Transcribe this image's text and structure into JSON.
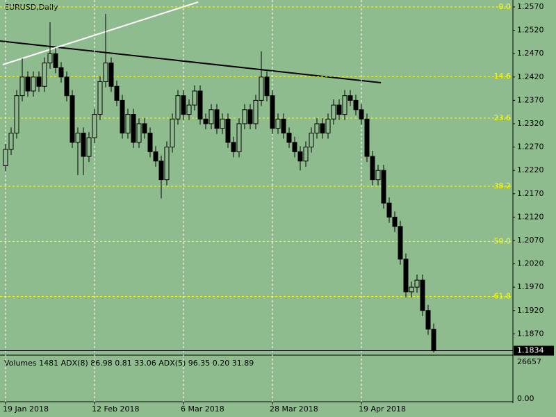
{
  "chart_data": {
    "type": "candlestick",
    "title": "EURUSD,Daily",
    "categories": [
      "19 Jan 2018",
      null,
      null,
      null,
      null,
      null,
      null,
      null,
      null,
      null,
      null,
      null,
      null,
      null,
      null,
      null,
      "12 Feb 2018",
      null,
      null,
      null,
      null,
      null,
      null,
      null,
      null,
      null,
      null,
      null,
      null,
      null,
      null,
      null,
      "6 Mar 2018",
      null,
      null,
      null,
      null,
      null,
      null,
      null,
      null,
      null,
      null,
      null,
      null,
      null,
      null,
      null,
      "28 Mar 2018",
      null,
      null,
      null,
      null,
      null,
      null,
      null,
      null,
      null,
      null,
      null,
      null,
      null,
      null,
      null,
      "19 Apr 2018",
      null,
      null,
      null,
      null,
      null,
      null,
      null,
      null,
      null,
      null,
      null,
      null,
      null
    ],
    "open": [
      1.223,
      1.2265,
      1.23,
      1.238,
      1.242,
      1.239,
      1.242,
      1.24,
      1.245,
      1.247,
      1.244,
      1.242,
      1.238,
      1.228,
      1.23,
      1.225,
      1.229,
      1.234,
      1.241,
      1.245,
      1.24,
      1.237,
      1.23,
      1.234,
      1.228,
      1.232,
      1.23,
      1.226,
      1.224,
      1.22,
      1.227,
      1.233,
      1.238,
      1.234,
      1.236,
      1.239,
      1.233,
      1.232,
      1.235,
      1.231,
      1.233,
      1.228,
      1.226,
      1.232,
      1.235,
      1.232,
      1.237,
      1.242,
      1.238,
      1.231,
      1.233,
      1.23,
      1.228,
      1.226,
      1.224,
      1.227,
      1.23,
      1.232,
      1.23,
      1.233,
      1.236,
      1.234,
      1.238,
      1.237,
      1.235,
      1.233,
      1.225,
      1.22,
      1.222,
      1.215,
      1.212,
      1.21,
      1.203,
      1.196,
      1.197,
      1.1985,
      1.192,
      1.188
    ],
    "high": [
      1.2277,
      1.2312,
      1.2392,
      1.246,
      1.2432,
      1.2432,
      1.2432,
      1.2462,
      1.2537,
      1.2482,
      1.2452,
      1.2432,
      1.2392,
      1.2312,
      1.2312,
      1.2302,
      1.2352,
      1.2422,
      1.2555,
      1.2462,
      1.2412,
      1.2382,
      1.2352,
      1.2352,
      1.2332,
      1.2332,
      1.2312,
      1.2272,
      1.2252,
      1.2282,
      1.2342,
      1.2392,
      1.2392,
      1.2372,
      1.2402,
      1.2402,
      1.2342,
      1.2362,
      1.2362,
      1.2342,
      1.2342,
      1.2292,
      1.2332,
      1.2362,
      1.2362,
      1.2382,
      1.2475,
      1.2432,
      1.2392,
      1.2342,
      1.2342,
      1.2312,
      1.2292,
      1.2272,
      1.2282,
      1.2312,
      1.2332,
      1.2332,
      1.2342,
      1.2372,
      1.2372,
      1.2392,
      1.2392,
      1.2382,
      1.2362,
      1.2342,
      1.2262,
      1.2232,
      1.2232,
      1.2162,
      1.2132,
      1.2112,
      1.2042,
      1.1982,
      1.1997,
      1.1997,
      1.1932,
      1.1892
    ],
    "low": [
      1.2218,
      1.2253,
      1.2288,
      1.2368,
      1.2378,
      1.2378,
      1.2388,
      1.2388,
      1.2438,
      1.2428,
      1.2408,
      1.2368,
      1.2268,
      1.221,
      1.221,
      1.2238,
      1.2278,
      1.2328,
      1.2398,
      1.2388,
      1.2358,
      1.2288,
      1.2288,
      1.2268,
      1.2268,
      1.2288,
      1.2248,
      1.2228,
      1.216,
      1.2188,
      1.2258,
      1.2318,
      1.2328,
      1.2328,
      1.2348,
      1.2318,
      1.2308,
      1.2308,
      1.2298,
      1.2298,
      1.2268,
      1.2248,
      1.2248,
      1.2308,
      1.2308,
      1.2308,
      1.2358,
      1.2368,
      1.2298,
      1.2298,
      1.2288,
      1.2268,
      1.2248,
      1.222,
      1.2228,
      1.2258,
      1.2288,
      1.2288,
      1.2288,
      1.2318,
      1.2328,
      1.2328,
      1.2358,
      1.2338,
      1.2318,
      1.2238,
      1.2188,
      1.2188,
      1.2138,
      1.2108,
      1.2088,
      1.2018,
      1.1948,
      1.1948,
      1.1958,
      1.1908,
      1.1868,
      1.183
    ],
    "close": [
      1.2265,
      1.23,
      1.238,
      1.242,
      1.239,
      1.242,
      1.24,
      1.245,
      1.247,
      1.244,
      1.242,
      1.238,
      1.228,
      1.23,
      1.225,
      1.229,
      1.234,
      1.241,
      1.245,
      1.24,
      1.237,
      1.23,
      1.234,
      1.228,
      1.232,
      1.23,
      1.226,
      1.224,
      1.22,
      1.227,
      1.233,
      1.238,
      1.234,
      1.236,
      1.239,
      1.233,
      1.232,
      1.235,
      1.231,
      1.233,
      1.228,
      1.226,
      1.232,
      1.235,
      1.232,
      1.237,
      1.242,
      1.238,
      1.231,
      1.233,
      1.23,
      1.228,
      1.226,
      1.224,
      1.227,
      1.23,
      1.232,
      1.23,
      1.233,
      1.236,
      1.234,
      1.238,
      1.237,
      1.235,
      1.233,
      1.225,
      1.22,
      1.222,
      1.215,
      1.212,
      1.21,
      1.203,
      1.196,
      1.197,
      1.1985,
      1.192,
      1.188,
      1.1834
    ],
    "color": "#000000",
    "ylim": [
      1.18259,
      1.25849
    ],
    "yticks": [
      {
        "value": 1.257,
        "label": "1.2570"
      },
      {
        "value": 1.252,
        "label": "1.2520"
      },
      {
        "value": 1.247,
        "label": "1.2470"
      },
      {
        "value": 1.242,
        "label": "1.2420"
      },
      {
        "value": 1.237,
        "label": "1.2370"
      },
      {
        "value": 1.232,
        "label": "1.2320"
      },
      {
        "value": 1.227,
        "label": "1.2270"
      },
      {
        "value": 1.222,
        "label": "1.2220"
      },
      {
        "value": 1.217,
        "label": "1.2170"
      },
      {
        "value": 1.212,
        "label": "1.2120"
      },
      {
        "value": 1.207,
        "label": "1.2070"
      },
      {
        "value": 1.202,
        "label": "1.2020"
      },
      {
        "value": 1.197,
        "label": "1.1970"
      },
      {
        "value": 1.192,
        "label": "1.1920"
      },
      {
        "value": 1.187,
        "label": "1.1870"
      }
    ],
    "fib_levels": [
      {
        "value": 1.257,
        "label": "0.0"
      },
      {
        "value": 1.2421,
        "label": "14.6"
      },
      {
        "value": 1.2332,
        "label": "23.6"
      },
      {
        "value": 1.2186,
        "label": "38.2"
      },
      {
        "value": 1.2068,
        "label": "50.0"
      },
      {
        "value": 1.195,
        "label": "61.8"
      }
    ],
    "fib_color": "#ffff00",
    "background": "#8fbc8f",
    "volume_panel": {
      "title": "Volumes 1481 ADX(8) 86.98 0.81 33.06 ADX(5) 96.35 0.20 31.89",
      "ylim": [
        0,
        26657
      ],
      "yticks": [
        {
          "value": 0,
          "label": "0.00"
        },
        26657
      ]
    }
  }
}
